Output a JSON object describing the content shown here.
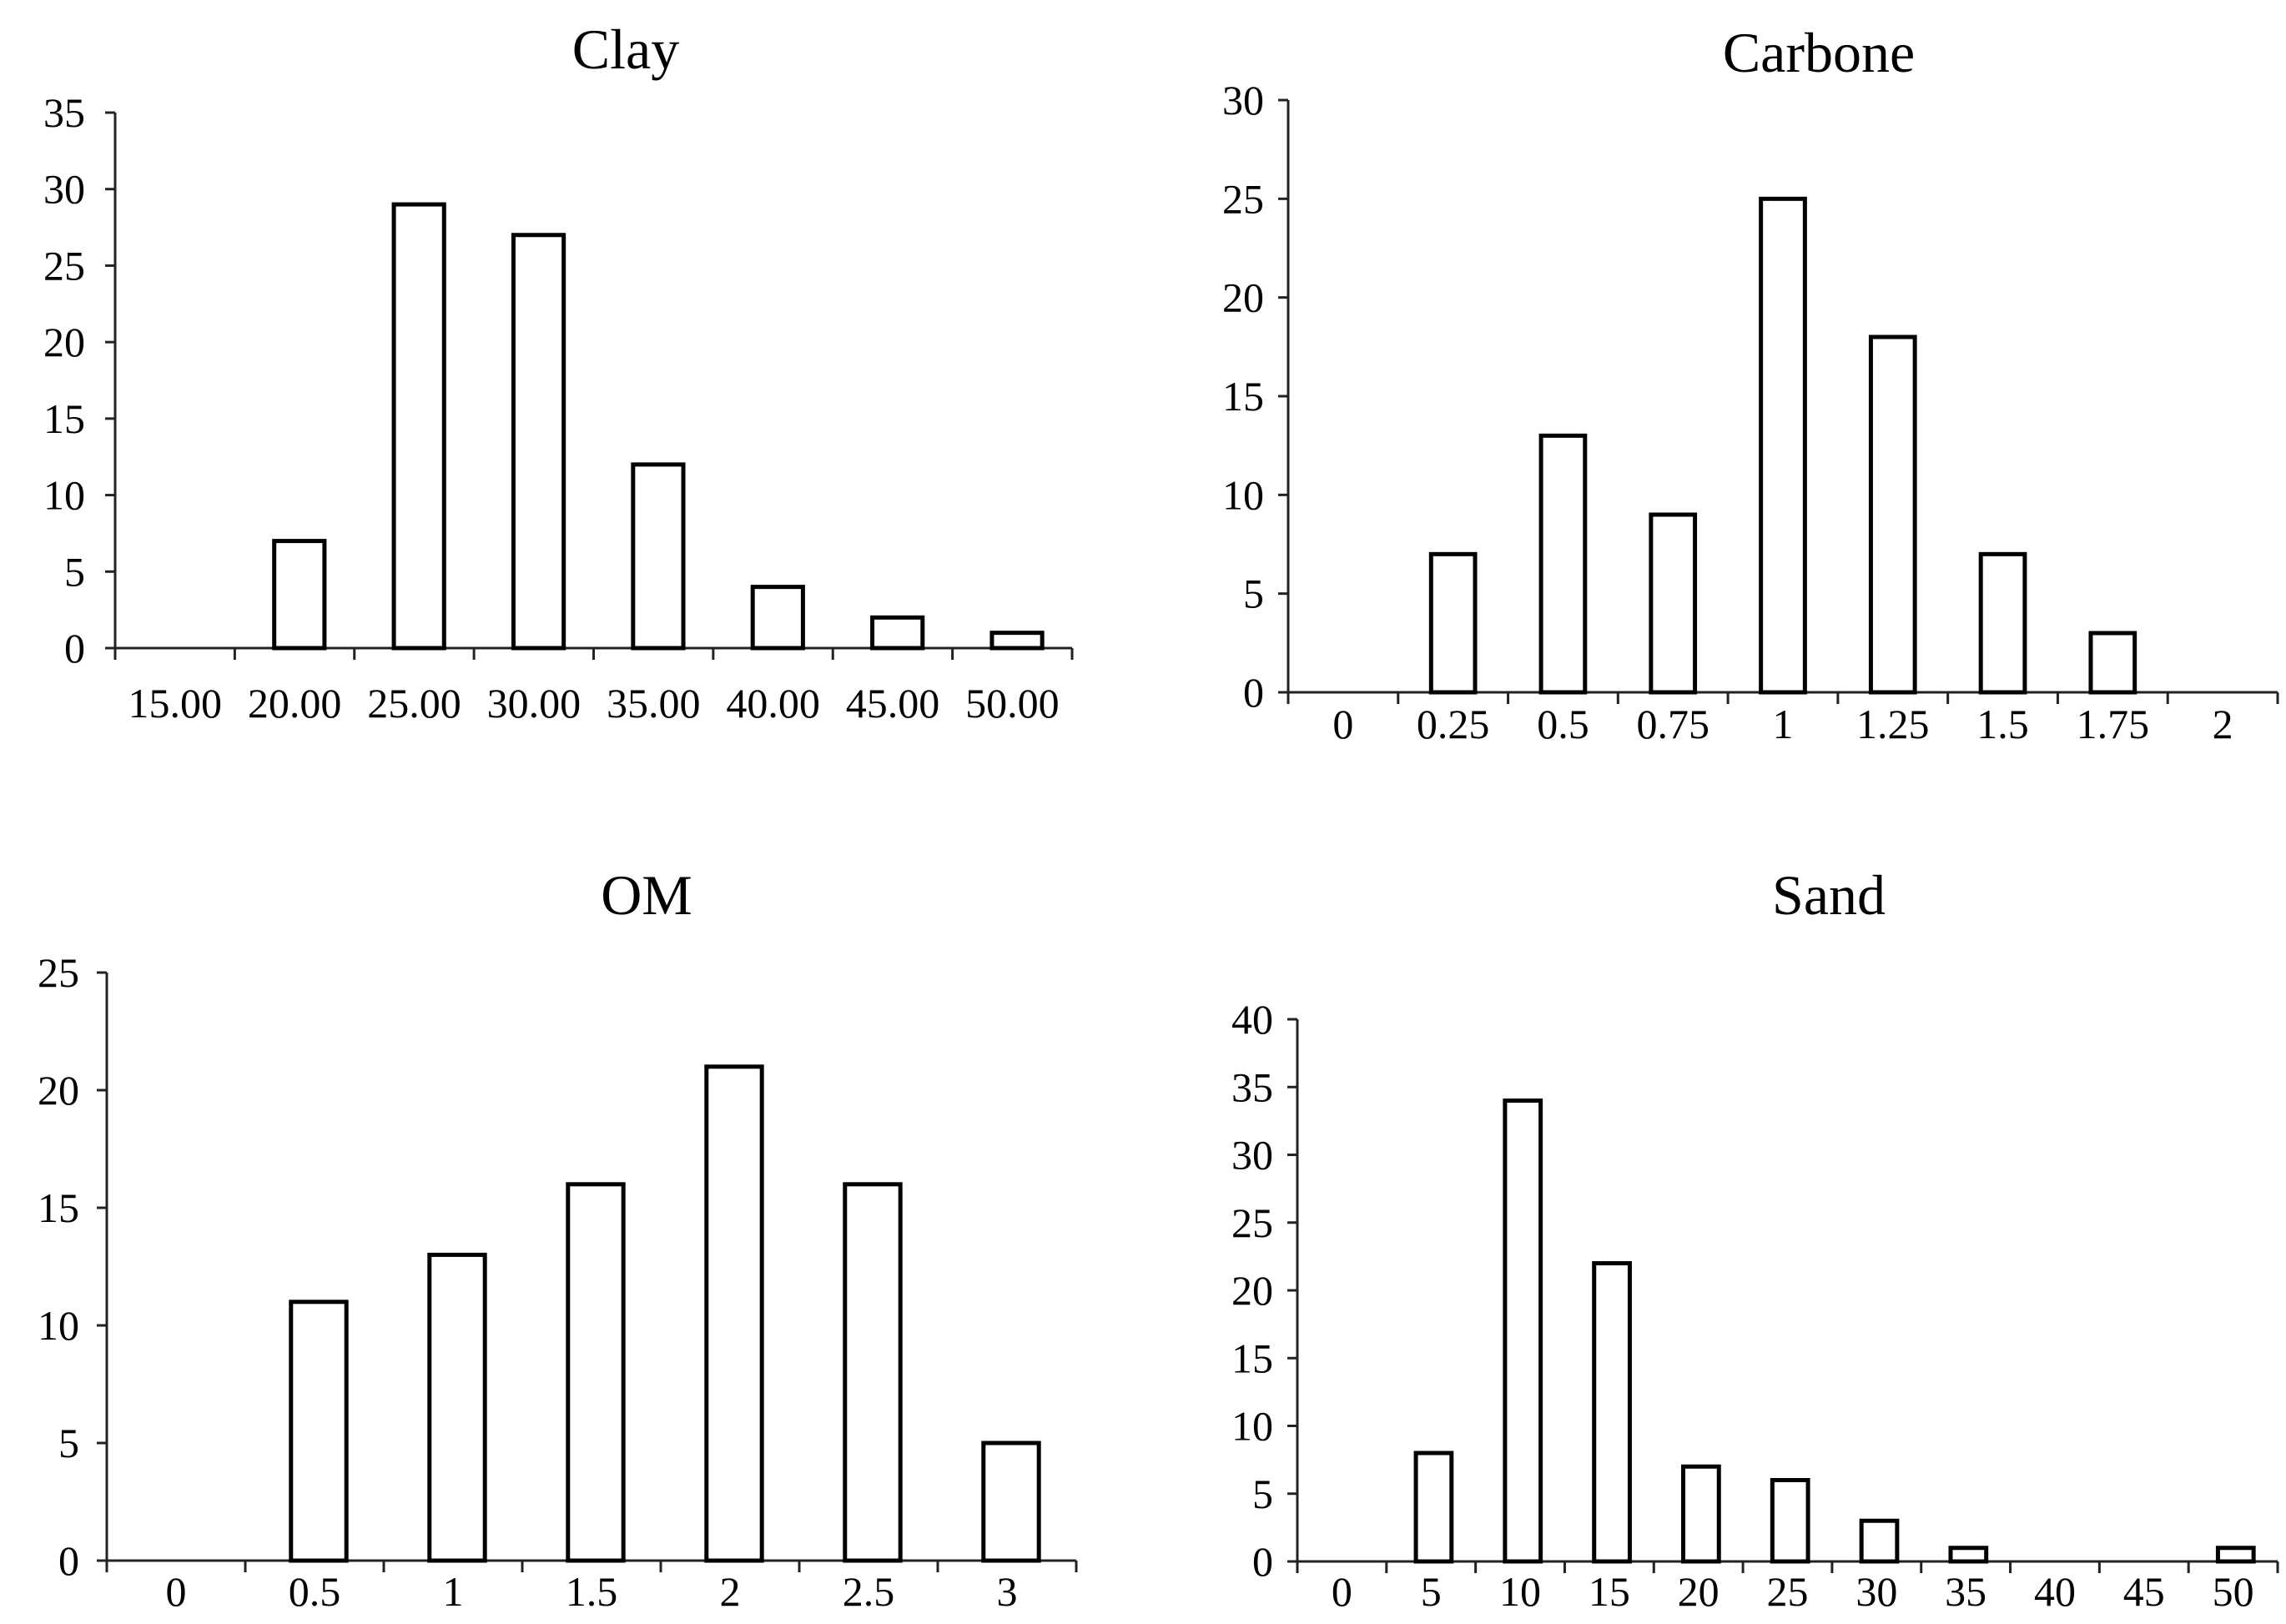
{
  "chart_data": [
    {
      "type": "bar",
      "title": "Clay",
      "xlabel": "",
      "ylabel": "",
      "categories": [
        "15.00",
        "20.00",
        "25.00",
        "30.00",
        "35.00",
        "40.00",
        "45.00",
        "50.00"
      ],
      "values": [
        0,
        7,
        29,
        27,
        12,
        4,
        2,
        1
      ],
      "ylim": [
        0,
        35
      ],
      "yticks": [
        0,
        5,
        10,
        15,
        20,
        25,
        30,
        35
      ],
      "grid": false,
      "legend": "none"
    },
    {
      "type": "bar",
      "title": "Carbone",
      "xlabel": "",
      "ylabel": "",
      "categories": [
        "0",
        "0.25",
        "0.5",
        "0.75",
        "1",
        "1.25",
        "1.5",
        "1.75",
        "2"
      ],
      "values": [
        0,
        7,
        13,
        9,
        25,
        18,
        7,
        3,
        0
      ],
      "ylim": [
        0,
        30
      ],
      "yticks": [
        0,
        5,
        10,
        15,
        20,
        25,
        30
      ],
      "grid": false,
      "legend": "none"
    },
    {
      "type": "bar",
      "title": "OM",
      "xlabel": "",
      "ylabel": "",
      "categories": [
        "0",
        "0.5",
        "1",
        "1.5",
        "2",
        "2.5",
        "3"
      ],
      "values": [
        0,
        11,
        13,
        16,
        21,
        16,
        5
      ],
      "ylim": [
        0,
        25
      ],
      "yticks": [
        0,
        5,
        10,
        15,
        20,
        25
      ],
      "grid": false,
      "legend": "none"
    },
    {
      "type": "bar",
      "title": "Sand",
      "xlabel": "",
      "ylabel": "",
      "categories": [
        "0",
        "5",
        "10",
        "15",
        "20",
        "25",
        "30",
        "35",
        "40",
        "45",
        "50"
      ],
      "values": [
        0,
        8,
        34,
        22,
        7,
        6,
        3,
        1,
        0,
        0,
        1
      ],
      "ylim": [
        0,
        40
      ],
      "yticks": [
        0,
        5,
        10,
        15,
        20,
        25,
        30,
        35,
        40
      ],
      "grid": false,
      "legend": "none"
    }
  ]
}
